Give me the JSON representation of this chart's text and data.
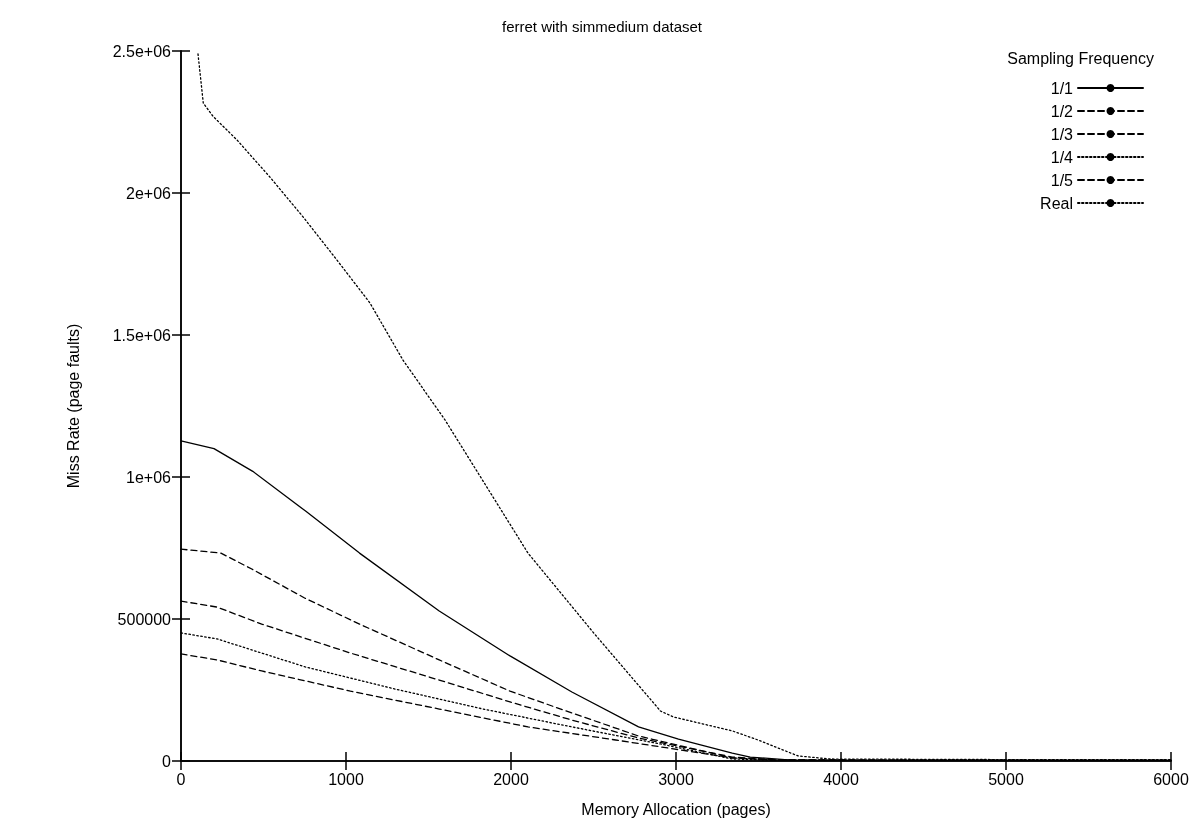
{
  "chart_data": {
    "type": "line",
    "title": "ferret with simmedium dataset",
    "xlabel": "Memory Allocation (pages)",
    "ylabel": "Miss Rate (page faults)",
    "legend_title": "Sampling Frequency",
    "xlim": [
      0,
      6000
    ],
    "xticks": [
      0,
      1000,
      2000,
      3000,
      4000,
      5000,
      6000
    ],
    "ylim": [
      0,
      2500000
    ],
    "yticks": [
      0,
      500000,
      {
        "value": 1000000,
        "label": "1e+06"
      },
      {
        "value": 1500000,
        "label": "1.5e+06"
      },
      {
        "value": 2000000,
        "label": "2e+06"
      },
      {
        "value": 2500000,
        "label": "2.5e+06"
      }
    ],
    "grid": false,
    "legend": "top right",
    "marker": "none",
    "series": [
      {
        "name": "1/1",
        "color": "#000000",
        "line_style": "solid",
        "x": [
          0,
          200,
          435,
          755,
          1082,
          1565,
          1994,
          2369,
          2773,
          3015,
          3341,
          3450,
          3700,
          4500,
          6000
        ],
        "values": [
          1127000,
          1100000,
          1020000,
          880000,
          732000,
          528000,
          370000,
          243000,
          120000,
          77000,
          28000,
          14000,
          3000,
          2000,
          2000
        ]
      },
      {
        "name": "1/2",
        "color": "#000000",
        "line_style": "dashed",
        "x": [
          0,
          242,
          429,
          749,
          1082,
          1565,
          1994,
          2369,
          2773,
          3341,
          3600,
          4500,
          6000
        ],
        "values": [
          746000,
          732000,
          676000,
          574000,
          482000,
          356000,
          246000,
          169000,
          88000,
          11000,
          4000,
          3000,
          2000
        ]
      },
      {
        "name": "1/3",
        "color": "#000000",
        "line_style": "dashed",
        "x": [
          0,
          218,
          489,
          1027,
          1565,
          1994,
          2369,
          2773,
          3341,
          3600,
          4500,
          6000
        ],
        "values": [
          563000,
          542000,
          482000,
          380000,
          285000,
          208000,
          144000,
          81000,
          14000,
          4000,
          2000,
          2000
        ]
      },
      {
        "name": "1/4",
        "color": "#000000",
        "line_style": "dotted",
        "x": [
          0,
          218,
          755,
          1293,
          1831,
          2369,
          2906,
          3341,
          3600,
          4500,
          6000
        ],
        "values": [
          451000,
          430000,
          331000,
          254000,
          183000,
          120000,
          60000,
          7000,
          3000,
          2000,
          2000
        ]
      },
      {
        "name": "1/5",
        "color": "#000000",
        "line_style": "dashed",
        "x": [
          0,
          218,
          489,
          1027,
          1565,
          2103,
          2634,
          3341,
          3600,
          4500,
          6000
        ],
        "values": [
          377000,
          356000,
          317000,
          246000,
          183000,
          120000,
          74000,
          11000,
          3000,
          2000,
          2000
        ]
      },
      {
        "name": "Real",
        "color": "#000000",
        "line_style": "dotted",
        "x": [
          103,
          135,
          194,
          339,
          539,
          741,
          945,
          1145,
          1345,
          1601,
          2103,
          2501,
          2906,
          2985,
          3341,
          3497,
          3739,
          3933,
          5000,
          6000
        ],
        "values": [
          2490000,
          2317000,
          2270000,
          2187000,
          2056000,
          1915000,
          1764000,
          1613000,
          1412000,
          1200000,
          732000,
          451000,
          176000,
          155000,
          106000,
          74000,
          18000,
          7000,
          5000,
          5000
        ]
      }
    ]
  }
}
